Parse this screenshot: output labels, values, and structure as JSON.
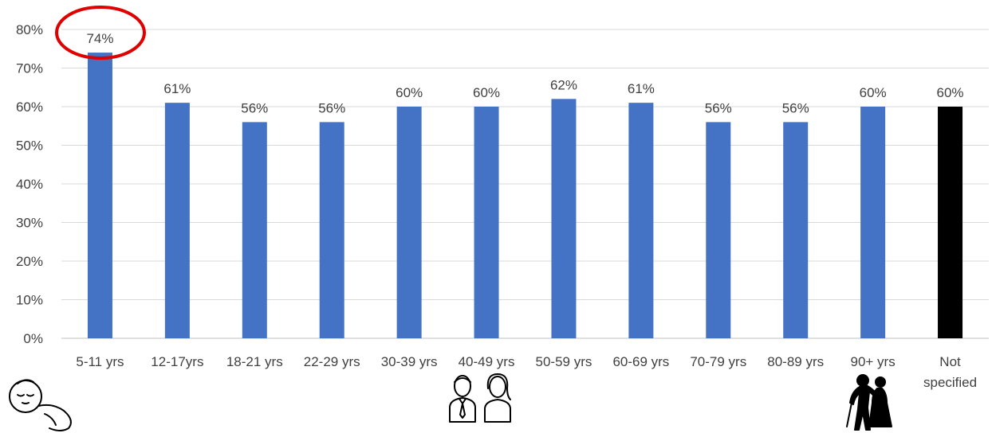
{
  "chart_data": {
    "type": "bar",
    "categories": [
      "5-11 yrs",
      "12-17yrs",
      "18-21 yrs",
      "22-29 yrs",
      "30-39 yrs",
      "40-49 yrs",
      "50-59 yrs",
      "60-69 yrs",
      "70-79 yrs",
      "80-89 yrs",
      "90+ yrs",
      "Not specified"
    ],
    "values": [
      74,
      61,
      56,
      56,
      60,
      60,
      62,
      61,
      56,
      56,
      60,
      60
    ],
    "data_labels": [
      "74%",
      "61%",
      "56%",
      "56%",
      "60%",
      "60%",
      "62%",
      "61%",
      "56%",
      "56%",
      "60%",
      "60%"
    ],
    "title": "",
    "xlabel": "",
    "ylabel": "",
    "ylim": [
      0,
      80
    ],
    "yticks": [
      "0%",
      "10%",
      "20%",
      "30%",
      "40%",
      "50%",
      "60%",
      "70%",
      "80%"
    ],
    "grid": true,
    "legend": "none",
    "highlight_index": 0,
    "colors": {
      "bar": "#4472C4",
      "bar_last": "#000000",
      "highlight_ring": "#E00000",
      "grid": "#D9D9D9",
      "text": "#404040"
    },
    "icons": {
      "left": "sleeping-baby-icon",
      "middle": "adult-couple-icon",
      "right": "elderly-couple-icon"
    }
  }
}
